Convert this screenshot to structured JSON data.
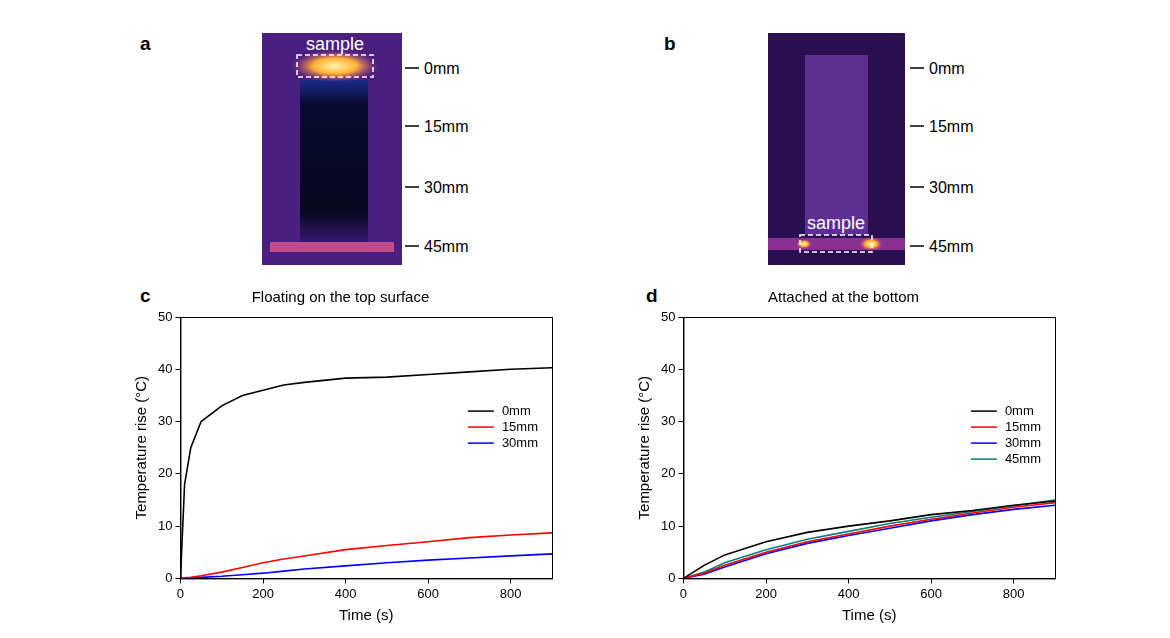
{
  "images": [
    {
      "panel": "a",
      "annotation": "sample",
      "scale": [
        "0mm",
        "15mm",
        "30mm",
        "45mm"
      ]
    },
    {
      "panel": "b",
      "annotation": "sample",
      "scale": [
        "0mm",
        "15mm",
        "30mm",
        "45mm"
      ]
    }
  ],
  "chart_data": [
    {
      "panel": "c",
      "type": "line",
      "title": "Floating on the top surface",
      "x_label": "Time (s)",
      "y_label": "Temperature rise (°C)",
      "x": [
        0,
        10,
        25,
        50,
        100,
        150,
        200,
        250,
        300,
        400,
        500,
        600,
        700,
        800,
        900
      ],
      "series": [
        {
          "name": "0mm",
          "color": "#000000",
          "values": [
            0,
            18,
            25,
            30,
            33,
            35,
            36,
            37,
            37.5,
            38.3,
            38.5,
            39,
            39.5,
            40,
            40.3
          ]
        },
        {
          "name": "15mm",
          "color": "#ff0000",
          "values": [
            0,
            0.1,
            0.2,
            0.5,
            1.2,
            2.1,
            3,
            3.7,
            4.3,
            5.5,
            6.3,
            7,
            7.8,
            8.3,
            8.7
          ]
        },
        {
          "name": "30mm",
          "color": "#0000ff",
          "values": [
            0,
            0,
            0.1,
            0.2,
            0.4,
            0.7,
            1,
            1.4,
            1.8,
            2.4,
            3,
            3.5,
            3.9,
            4.3,
            4.7
          ]
        }
      ],
      "xlim": [
        0,
        900
      ],
      "xticks": [
        0,
        200,
        400,
        600,
        800
      ],
      "ylim": [
        0,
        50
      ],
      "yticks": [
        0,
        10,
        20,
        30,
        40,
        50
      ],
      "grid": false,
      "legend": "right"
    },
    {
      "panel": "d",
      "type": "line",
      "title": "Attached at the bottom",
      "x_label": "Time (s)",
      "y_label": "Temperature rise (°C)",
      "x": [
        0,
        50,
        100,
        200,
        300,
        400,
        500,
        600,
        700,
        800,
        900
      ],
      "series": [
        {
          "name": "0mm",
          "color": "#000000",
          "values": [
            0,
            2.5,
            4.5,
            7,
            8.8,
            10,
            11,
            12.2,
            13,
            14,
            14.8
          ]
        },
        {
          "name": "15mm",
          "color": "#ff0000",
          "values": [
            0,
            1,
            2.5,
            5,
            7,
            8.5,
            10,
            11.3,
            12.5,
            13.6,
            14.5
          ]
        },
        {
          "name": "30mm",
          "color": "#0000ff",
          "values": [
            0,
            0.8,
            2.2,
            4.7,
            6.7,
            8.2,
            9.6,
            11,
            12.2,
            13.2,
            14
          ]
        },
        {
          "name": "45mm",
          "color": "#008080",
          "values": [
            0,
            1.2,
            3,
            5.5,
            7.5,
            9,
            10.5,
            11.7,
            12.8,
            13.9,
            15
          ]
        }
      ],
      "xlim": [
        0,
        900
      ],
      "xticks": [
        0,
        200,
        400,
        600,
        800
      ],
      "ylim": [
        0,
        50
      ],
      "yticks": [
        0,
        10,
        20,
        30,
        40,
        50
      ],
      "grid": false,
      "legend": "right"
    }
  ]
}
